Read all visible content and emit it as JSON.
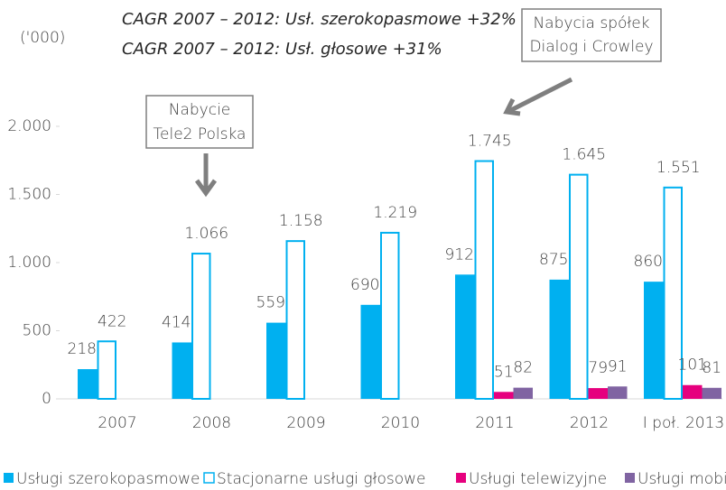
{
  "chart_data": {
    "type": "bar",
    "unit_label": "('000)",
    "annotations": [
      "CAGR 2007 – 2012: Usł. szerokopasmowe +32%",
      "CAGR 2007 – 2012: Usł. głosowe +31%"
    ],
    "callouts": [
      {
        "lines": [
          "Nabycie",
          "Tele2 Polska"
        ]
      },
      {
        "lines": [
          "Nabycia spółek",
          "Dialog i Crowley"
        ]
      }
    ],
    "categories": [
      "2007",
      "2008",
      "2009",
      "2010",
      "2011",
      "2012",
      "I poł. 2013"
    ],
    "series": [
      {
        "name": "Usługi szerokopasmowe",
        "color": "#00b0f0",
        "values": [
          218,
          414,
          559,
          690,
          912,
          875,
          860
        ]
      },
      {
        "name": "Stacjonarne usługi głosowe",
        "color": "#00b0f0",
        "fill": "#ffffff",
        "values": [
          422,
          1066,
          1158,
          1219,
          1745,
          1645,
          1551
        ],
        "value_labels": [
          "422",
          "1.066",
          "1.158",
          "1.219",
          "1.745",
          "1.645",
          "1.551"
        ]
      },
      {
        "name": "Usługi telewizyjne",
        "color": "#e6007e",
        "values": [
          null,
          null,
          null,
          null,
          51,
          79,
          101
        ]
      },
      {
        "name": "Usługi mobil",
        "color": "#8064a2",
        "values": [
          null,
          null,
          null,
          null,
          82,
          91,
          81
        ]
      }
    ],
    "ylim": [
      0,
      2000
    ],
    "yticks": [
      0,
      500,
      {
        "value": 1000,
        "label": "1.000"
      },
      {
        "value": 1500,
        "label": "1.500"
      },
      {
        "value": 2000,
        "label": "2.000"
      }
    ],
    "grid": false
  }
}
